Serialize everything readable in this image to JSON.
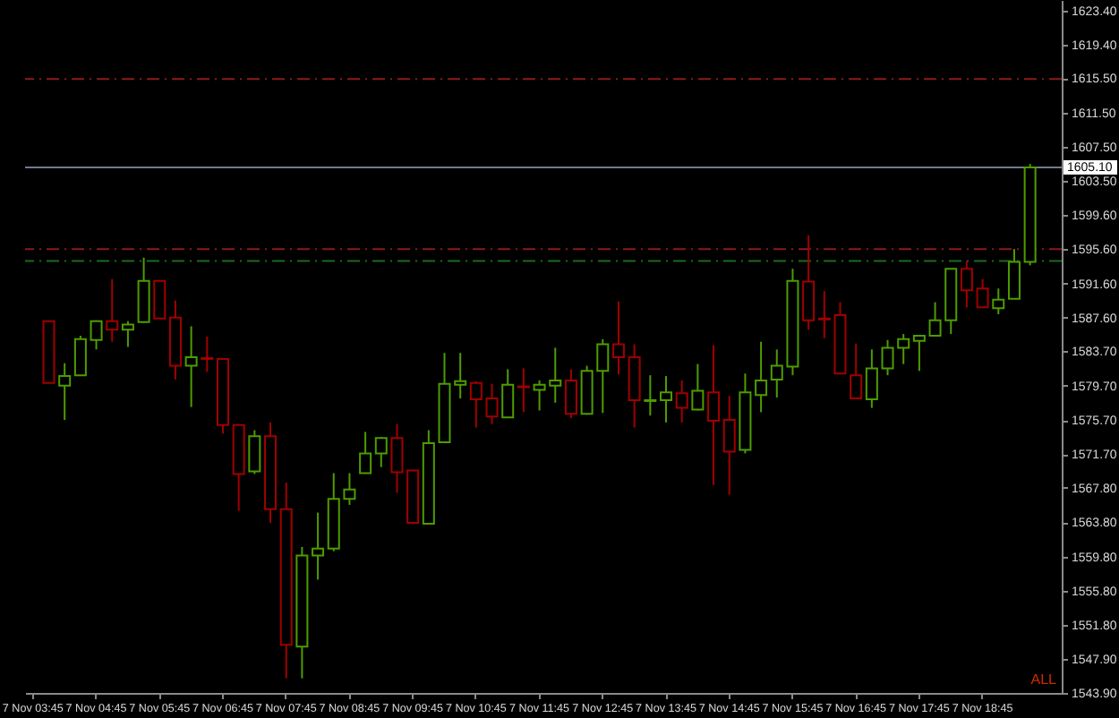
{
  "chart_data": {
    "type": "candlestick",
    "categories": [
      "7 Nov 03:45",
      null,
      null,
      null,
      "7 Nov 04:45",
      null,
      null,
      null,
      "7 Nov 05:45",
      null,
      null,
      null,
      "7 Nov 06:45",
      null,
      null,
      null,
      "7 Nov 07:45",
      null,
      null,
      null,
      "7 Nov 08:45",
      null,
      null,
      null,
      "7 Nov 09:45",
      null,
      null,
      null,
      "7 Nov 10:45",
      null,
      null,
      null,
      "7 Nov 11:45",
      null,
      null,
      null,
      "7 Nov 12:45",
      null,
      null,
      null,
      "7 Nov 13:45",
      null,
      null,
      null,
      "7 Nov 14:45",
      null,
      null,
      null,
      "7 Nov 15:45",
      null,
      null,
      null,
      "7 Nov 16:45",
      null,
      null,
      null,
      "7 Nov 17:45",
      null,
      null,
      null,
      "7 Nov 18:45",
      null,
      null,
      null
    ],
    "ohlc": [
      null,
      [
        1587.2,
        1587.2,
        1580.0,
        1580.0
      ],
      [
        1579.7,
        1582.3,
        1575.7,
        1580.8
      ],
      [
        1580.9,
        1585.5,
        1580.9,
        1585.1
      ],
      [
        1585.0,
        1587.3,
        1583.9,
        1587.2
      ],
      [
        1587.2,
        1592.1,
        1584.8,
        1586.2
      ],
      [
        1586.2,
        1587.2,
        1584.2,
        1586.8
      ],
      [
        1587.1,
        1594.6,
        1587.0,
        1591.9
      ],
      [
        1591.9,
        1592.0,
        1587.5,
        1587.5
      ],
      [
        1587.6,
        1589.6,
        1580.4,
        1582.0
      ],
      [
        1582.0,
        1586.6,
        1577.2,
        1583.0
      ],
      [
        1582.9,
        1585.4,
        1581.3,
        1582.8
      ],
      [
        1582.8,
        1582.9,
        1574.1,
        1575.1
      ],
      [
        1575.1,
        1575.2,
        1565.1,
        1569.4
      ],
      [
        1569.7,
        1574.5,
        1569.4,
        1573.8
      ],
      [
        1573.8,
        1575.4,
        1563.7,
        1565.3
      ],
      [
        1565.3,
        1568.4,
        1545.6,
        1549.5
      ],
      [
        1549.3,
        1560.9,
        1545.6,
        1559.9
      ],
      [
        1559.9,
        1564.9,
        1557.1,
        1560.7
      ],
      [
        1560.7,
        1569.5,
        1560.4,
        1566.5
      ],
      [
        1566.5,
        1569.5,
        1565.8,
        1567.6
      ],
      [
        1569.5,
        1574.3,
        1569.5,
        1571.8
      ],
      [
        1571.8,
        1573.7,
        1570.2,
        1573.6
      ],
      [
        1573.6,
        1575.2,
        1567.2,
        1569.6
      ],
      [
        1569.8,
        1569.9,
        1563.7,
        1563.7
      ],
      [
        1563.6,
        1574.5,
        1563.6,
        1573.0
      ],
      [
        1573.1,
        1583.5,
        1573.0,
        1579.9
      ],
      [
        1579.8,
        1583.5,
        1578.2,
        1580.2
      ],
      [
        1580.0,
        1580.2,
        1574.8,
        1578.1
      ],
      [
        1578.2,
        1579.9,
        1575.2,
        1576.1
      ],
      [
        1576.0,
        1581.6,
        1576.0,
        1579.8
      ],
      [
        1579.6,
        1581.7,
        1576.6,
        1579.5
      ],
      [
        1579.2,
        1580.3,
        1576.8,
        1579.8
      ],
      [
        1579.7,
        1584.1,
        1577.7,
        1580.3
      ],
      [
        1580.3,
        1581.6,
        1575.9,
        1576.4
      ],
      [
        1576.4,
        1582.0,
        1576.3,
        1581.4
      ],
      [
        1581.4,
        1585.1,
        1576.5,
        1584.5
      ],
      [
        1584.5,
        1589.5,
        1581.0,
        1583.0
      ],
      [
        1583.0,
        1584.5,
        1574.8,
        1578.0
      ],
      [
        1577.9,
        1580.9,
        1576.2,
        1578.0
      ],
      [
        1578.0,
        1580.8,
        1575.4,
        1578.9
      ],
      [
        1578.8,
        1580.3,
        1575.4,
        1577.1
      ],
      [
        1576.9,
        1582.2,
        1576.8,
        1579.1
      ],
      [
        1578.9,
        1584.4,
        1568.1,
        1575.6
      ],
      [
        1575.7,
        1578.5,
        1567.0,
        1572.0
      ],
      [
        1572.2,
        1581.1,
        1571.8,
        1578.9
      ],
      [
        1578.6,
        1584.8,
        1576.6,
        1580.3
      ],
      [
        1580.4,
        1583.9,
        1578.3,
        1582.0
      ],
      [
        1581.9,
        1593.3,
        1580.9,
        1591.9
      ],
      [
        1591.8,
        1597.2,
        1586.2,
        1587.3
      ],
      [
        1587.5,
        1590.7,
        1585.2,
        1587.4
      ],
      [
        1587.9,
        1589.4,
        1581.0,
        1581.1
      ],
      [
        1580.9,
        1584.6,
        1578.2,
        1578.2
      ],
      [
        1578.1,
        1583.9,
        1577.1,
        1581.7
      ],
      [
        1581.7,
        1585.0,
        1580.9,
        1584.1
      ],
      [
        1584.1,
        1585.7,
        1582.2,
        1585.1
      ],
      [
        1584.9,
        1585.6,
        1581.4,
        1585.5
      ],
      [
        1585.5,
        1589.4,
        1585.5,
        1587.3
      ],
      [
        1587.3,
        1593.3,
        1585.7,
        1593.3
      ],
      [
        1593.3,
        1594.2,
        1588.8,
        1590.8
      ],
      [
        1591.0,
        1592.1,
        1588.8,
        1588.8
      ],
      [
        1588.7,
        1591.0,
        1588.0,
        1589.7
      ],
      [
        1589.8,
        1595.6,
        1589.8,
        1594.1
      ],
      [
        1594.1,
        1605.5,
        1593.7,
        1605.1
      ]
    ],
    "colors": [
      null,
      "#a00000",
      "#4e9c00",
      "#4e9c00",
      "#4e9c00",
      "#a00000",
      "#4e9c00",
      "#4e9c00",
      "#a00000",
      "#a00000",
      "#4e9c00",
      "#a00000",
      "#a00000",
      "#a00000",
      "#4e9c00",
      "#a00000",
      "#a00000",
      "#4e9c00",
      "#4e9c00",
      "#4e9c00",
      "#4e9c00",
      "#4e9c00",
      "#4e9c00",
      "#a00000",
      "#a00000",
      "#4e9c00",
      "#4e9c00",
      "#4e9c00",
      "#a00000",
      "#a00000",
      "#4e9c00",
      "#a00000",
      "#4e9c00",
      "#4e9c00",
      "#a00000",
      "#4e9c00",
      "#4e9c00",
      "#a00000",
      "#a00000",
      "#4e9c00",
      "#4e9c00",
      "#a00000",
      "#4e9c00",
      "#a00000",
      "#a00000",
      "#4e9c00",
      "#4e9c00",
      "#4e9c00",
      "#4e9c00",
      "#a00000",
      "#a00000",
      "#a00000",
      "#a00000",
      "#4e9c00",
      "#4e9c00",
      "#4e9c00",
      "#4e9c00",
      "#4e9c00",
      "#4e9c00",
      "#a00000",
      "#a00000",
      "#4e9c00",
      "#4e9c00",
      "#4e9c00"
    ],
    "ylim": [
      1543.9,
      1624.6
    ],
    "yticks": [
      {
        "value": 1543.9,
        "label": "1543.90"
      },
      {
        "value": 1547.9,
        "label": "1547.90"
      },
      {
        "value": 1551.8,
        "label": "1551.80"
      },
      {
        "value": 1555.8,
        "label": "1555.80"
      },
      {
        "value": 1559.8,
        "label": "1559.80"
      },
      {
        "value": 1563.8,
        "label": "1563.80"
      },
      {
        "value": 1567.8,
        "label": "1567.80"
      },
      {
        "value": 1571.7,
        "label": "1571.70"
      },
      {
        "value": 1575.7,
        "label": "1575.70"
      },
      {
        "value": 1579.7,
        "label": "1579.70"
      },
      {
        "value": 1583.7,
        "label": "1583.70"
      },
      {
        "value": 1587.6,
        "label": "1587.60"
      },
      {
        "value": 1591.6,
        "label": "1591.60"
      },
      {
        "value": 1595.6,
        "label": "1595.60"
      },
      {
        "value": 1599.6,
        "label": "1599.60"
      },
      {
        "value": 1603.5,
        "label": "1603.50"
      },
      {
        "value": 1607.5,
        "label": "1607.50"
      },
      {
        "value": 1611.5,
        "label": "1611.50"
      },
      {
        "value": 1615.5,
        "label": "1615.50"
      },
      {
        "value": 1619.4,
        "label": "1619.40"
      },
      {
        "value": 1623.4,
        "label": "1623.40"
      }
    ],
    "ref_lines": [
      {
        "axis": "y",
        "value": 1615.4,
        "color": "#8c1a1a",
        "line_style": "dashed"
      },
      {
        "axis": "y",
        "value": 1605.1,
        "label": "1605.10",
        "color": "#6e7c8a",
        "line_style": "solid"
      },
      {
        "axis": "y",
        "value": 1595.6,
        "color": "#8c1a1a",
        "line_style": "dashed"
      },
      {
        "axis": "y",
        "value": 1594.2,
        "color": "#1c6b1c",
        "line_style": "dashed"
      }
    ],
    "annotations": [
      "ALL"
    ]
  }
}
